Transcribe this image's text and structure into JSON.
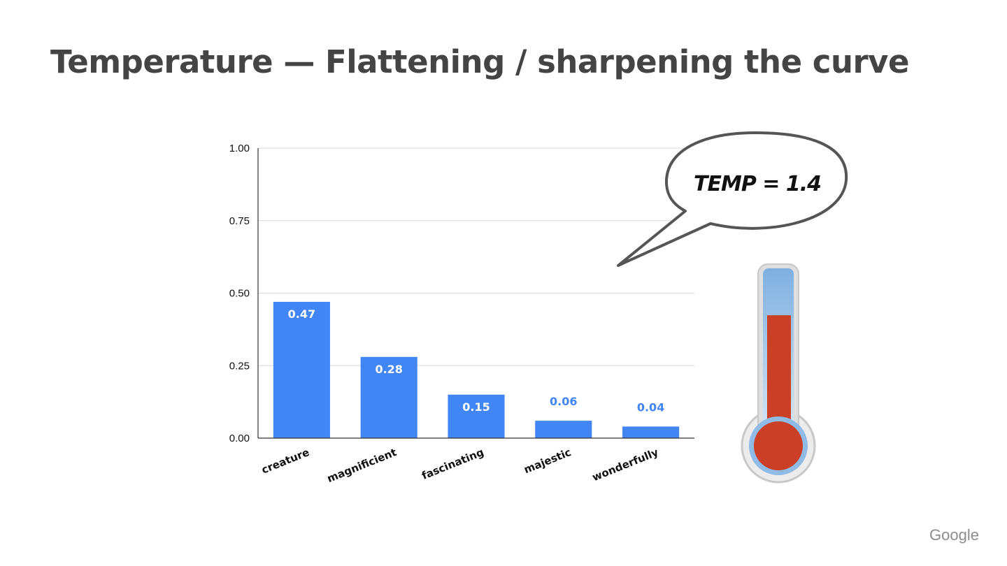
{
  "slide": {
    "title": "Temperature — Flattening / sharpening the curve",
    "brand": "Google"
  },
  "bubble": {
    "text": "TEMP = 1.4"
  },
  "thermometer": {
    "level": 0.72,
    "liquid_color": "#cc3f27",
    "tube_color": "#8fbbe6"
  },
  "colors": {
    "bar": "#4285f4",
    "label_inside": "#ffffff",
    "label_outside": "#4285f4",
    "grid": "#d9d9d9"
  },
  "chart_data": {
    "type": "bar",
    "categories": [
      "creature",
      "magnificient",
      "fascinating",
      "majestic",
      "wonderfully"
    ],
    "values": [
      0.47,
      0.28,
      0.15,
      0.06,
      0.04
    ],
    "data_labels": [
      "0.47",
      "0.28",
      "0.15",
      "0.06",
      "0.04"
    ],
    "title": "",
    "xlabel": "",
    "ylabel": "",
    "ylim": [
      0,
      1
    ],
    "yticks": [
      0,
      0.25,
      0.5,
      0.75,
      1
    ],
    "ytick_labels": [
      "0.00",
      "0.25",
      "0.50",
      "0.75",
      "1.00"
    ],
    "grid": true,
    "legend": "none"
  }
}
